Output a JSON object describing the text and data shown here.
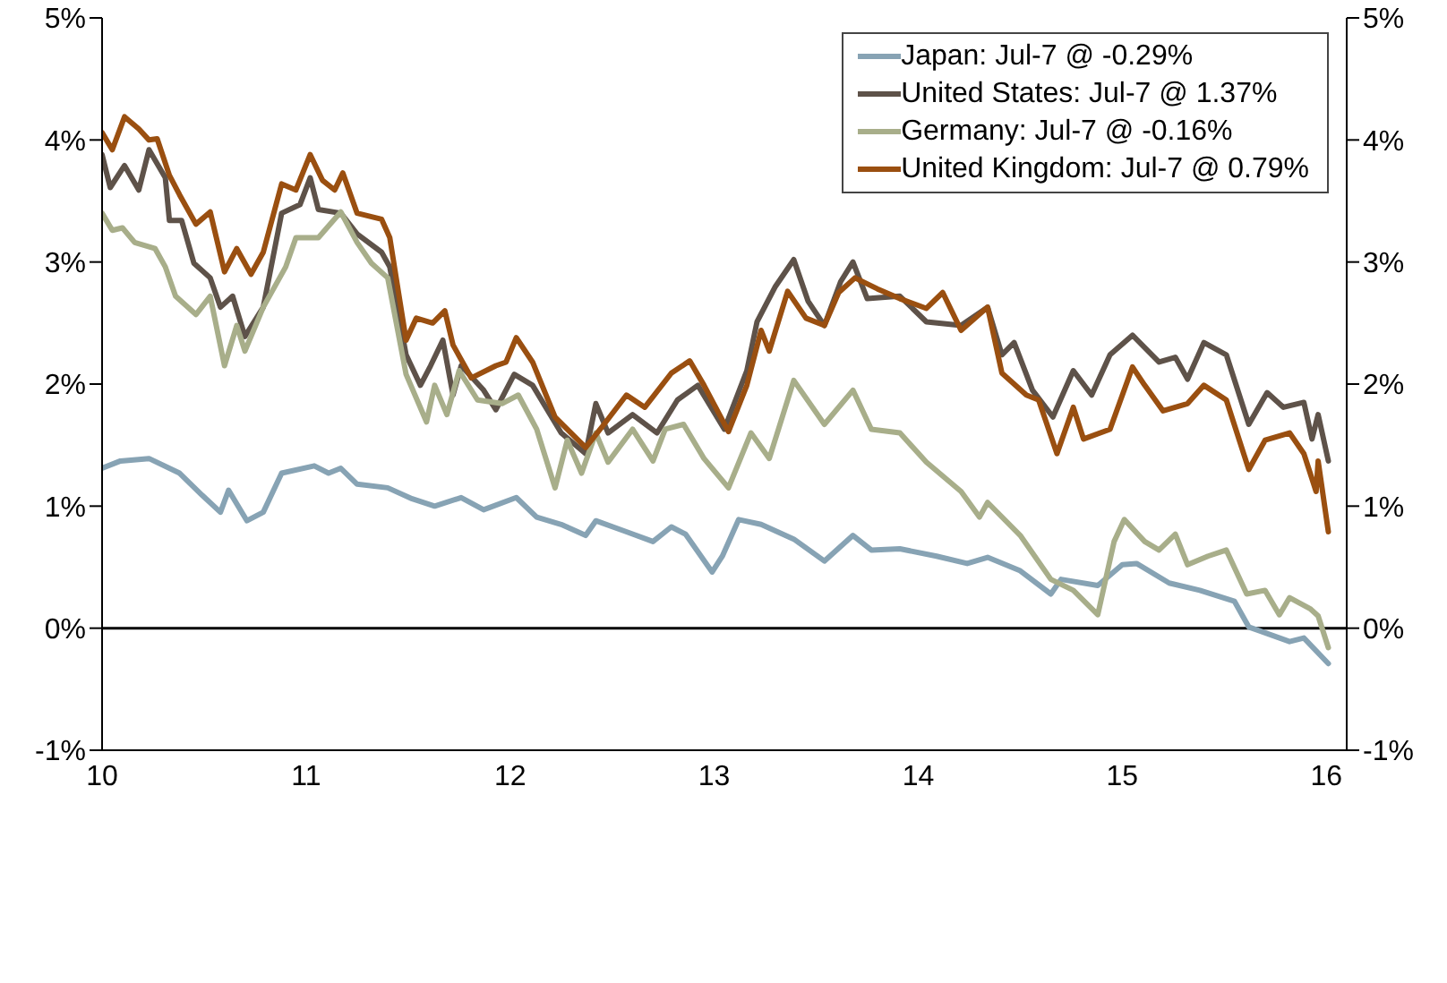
{
  "chart_data": {
    "type": "line",
    "xlim": [
      10,
      16.1
    ],
    "xticks": [
      10,
      11,
      12,
      13,
      14,
      15,
      16
    ],
    "ylim": [
      -1,
      5
    ],
    "yticks": [
      {
        "value": -1,
        "label": "-1%"
      },
      {
        "value": 0,
        "label": "0%"
      },
      {
        "value": 1,
        "label": "1%"
      },
      {
        "value": 2,
        "label": "2%"
      },
      {
        "value": 3,
        "label": "3%"
      },
      {
        "value": 4,
        "label": "4%"
      },
      {
        "value": 5,
        "label": "5%"
      }
    ],
    "y2lim": [
      -1,
      5
    ],
    "y2ticks": [
      {
        "value": -1,
        "label": "-1%"
      },
      {
        "value": 0,
        "label": "0%"
      },
      {
        "value": 1,
        "label": "1%"
      },
      {
        "value": 2,
        "label": "2%"
      },
      {
        "value": 3,
        "label": "3%"
      },
      {
        "value": 4,
        "label": "4%"
      },
      {
        "value": 5,
        "label": "5%"
      }
    ],
    "grid": false,
    "legend": "top right",
    "marker": "none",
    "line_style": "solid",
    "ref_lines": [
      {
        "axis": "y",
        "value": 0,
        "color": "#000000"
      }
    ],
    "series": [
      {
        "name": "Japan: Jul-7 @ -0.29%",
        "color": "#87a3b4",
        "x": [
          10.0,
          10.09,
          10.23,
          10.38,
          10.49,
          10.58,
          10.62,
          10.71,
          10.79,
          10.88,
          11.04,
          11.11,
          11.17,
          11.25,
          11.4,
          11.52,
          11.63,
          11.76,
          11.87,
          12.03,
          12.13,
          12.25,
          12.37,
          12.42,
          12.57,
          12.7,
          12.79,
          12.86,
          12.99,
          13.04,
          13.12,
          13.23,
          13.39,
          13.54,
          13.68,
          13.77,
          13.91,
          14.09,
          14.24,
          14.34,
          14.5,
          14.65,
          14.7,
          14.88,
          15.0,
          15.07,
          15.23,
          15.38,
          15.55,
          15.62,
          15.67,
          15.82,
          15.89,
          16.01
        ],
        "values": [
          1.31,
          1.37,
          1.39,
          1.27,
          1.09,
          0.95,
          1.13,
          0.88,
          0.95,
          1.27,
          1.33,
          1.27,
          1.31,
          1.18,
          1.15,
          1.06,
          1.0,
          1.07,
          0.97,
          1.07,
          0.91,
          0.85,
          0.76,
          0.88,
          0.79,
          0.71,
          0.83,
          0.77,
          0.46,
          0.59,
          0.89,
          0.85,
          0.73,
          0.55,
          0.76,
          0.64,
          0.65,
          0.59,
          0.53,
          0.58,
          0.47,
          0.28,
          0.4,
          0.35,
          0.52,
          0.53,
          0.37,
          0.31,
          0.22,
          0.01,
          -0.02,
          -0.11,
          -0.08,
          -0.29
        ]
      },
      {
        "name": "United States: Jul-7 @ 1.37%",
        "color": "#5e5249",
        "x": [
          10.0,
          10.04,
          10.11,
          10.18,
          10.23,
          10.31,
          10.33,
          10.39,
          10.45,
          10.53,
          10.58,
          10.64,
          10.7,
          10.79,
          10.88,
          10.97,
          11.02,
          11.06,
          11.17,
          11.25,
          11.37,
          11.41,
          11.49,
          11.56,
          11.61,
          11.67,
          11.72,
          11.76,
          11.87,
          11.93,
          12.02,
          12.11,
          12.25,
          12.37,
          12.42,
          12.48,
          12.6,
          12.72,
          12.82,
          12.92,
          13.05,
          13.16,
          13.21,
          13.3,
          13.39,
          13.46,
          13.54,
          13.62,
          13.68,
          13.75,
          13.91,
          14.04,
          14.21,
          14.34,
          14.41,
          14.47,
          14.56,
          14.66,
          14.76,
          14.85,
          14.94,
          15.05,
          15.18,
          15.26,
          15.32,
          15.4,
          15.51,
          15.62,
          15.71,
          15.79,
          15.89,
          15.93,
          15.96,
          16.01
        ],
        "values": [
          3.88,
          3.61,
          3.79,
          3.59,
          3.92,
          3.69,
          3.34,
          3.34,
          2.99,
          2.87,
          2.63,
          2.72,
          2.39,
          2.63,
          3.4,
          3.47,
          3.69,
          3.43,
          3.4,
          3.23,
          3.08,
          2.96,
          2.24,
          1.99,
          2.15,
          2.36,
          1.91,
          2.15,
          1.95,
          1.79,
          2.08,
          1.99,
          1.6,
          1.43,
          1.84,
          1.6,
          1.75,
          1.6,
          1.87,
          1.99,
          1.63,
          2.11,
          2.51,
          2.8,
          3.02,
          2.68,
          2.48,
          2.84,
          3.0,
          2.7,
          2.72,
          2.51,
          2.48,
          2.63,
          2.24,
          2.34,
          1.95,
          1.73,
          2.11,
          1.91,
          2.24,
          2.4,
          2.18,
          2.22,
          2.04,
          2.34,
          2.24,
          1.67,
          1.93,
          1.81,
          1.85,
          1.55,
          1.75,
          1.37
        ]
      },
      {
        "name": "Germany: Jul-7 @ -0.16%",
        "color": "#a8ae8a",
        "x": [
          10.0,
          10.05,
          10.1,
          10.16,
          10.26,
          10.31,
          10.36,
          10.46,
          10.53,
          10.6,
          10.66,
          10.7,
          10.79,
          10.9,
          10.95,
          11.06,
          11.17,
          11.25,
          11.32,
          11.4,
          11.49,
          11.59,
          11.63,
          11.69,
          11.75,
          11.84,
          11.96,
          12.04,
          12.13,
          12.22,
          12.28,
          12.35,
          12.42,
          12.48,
          12.6,
          12.7,
          12.76,
          12.85,
          12.95,
          13.07,
          13.18,
          13.27,
          13.39,
          13.54,
          13.68,
          13.77,
          13.91,
          14.04,
          14.21,
          14.3,
          14.34,
          14.5,
          14.65,
          14.76,
          14.88,
          14.96,
          15.01,
          15.11,
          15.18,
          15.26,
          15.32,
          15.42,
          15.51,
          15.61,
          15.7,
          15.77,
          15.82,
          15.92,
          15.96,
          16.01
        ],
        "values": [
          3.4,
          3.26,
          3.28,
          3.16,
          3.11,
          2.96,
          2.72,
          2.57,
          2.72,
          2.15,
          2.48,
          2.27,
          2.63,
          2.96,
          3.2,
          3.2,
          3.41,
          3.16,
          2.99,
          2.87,
          2.08,
          1.69,
          1.99,
          1.75,
          2.11,
          1.87,
          1.84,
          1.91,
          1.63,
          1.15,
          1.54,
          1.27,
          1.6,
          1.36,
          1.63,
          1.37,
          1.63,
          1.67,
          1.39,
          1.15,
          1.6,
          1.39,
          2.03,
          1.67,
          1.95,
          1.63,
          1.6,
          1.36,
          1.12,
          0.91,
          1.03,
          0.76,
          0.4,
          0.31,
          0.11,
          0.71,
          0.89,
          0.71,
          0.64,
          0.77,
          0.52,
          0.59,
          0.64,
          0.28,
          0.31,
          0.11,
          0.25,
          0.16,
          0.1,
          -0.16
        ]
      },
      {
        "name": "United Kingdom: Jul-7 @ 0.79%",
        "color": "#9a4f10",
        "x": [
          10.0,
          10.05,
          10.11,
          10.18,
          10.23,
          10.27,
          10.33,
          10.38,
          10.46,
          10.53,
          10.6,
          10.66,
          10.73,
          10.79,
          10.88,
          10.95,
          11.02,
          11.08,
          11.14,
          11.18,
          11.25,
          11.37,
          11.41,
          11.49,
          11.54,
          11.62,
          11.68,
          11.72,
          11.81,
          11.93,
          11.98,
          12.03,
          12.11,
          12.22,
          12.37,
          12.46,
          12.57,
          12.66,
          12.79,
          12.88,
          12.95,
          13.07,
          13.16,
          13.23,
          13.27,
          13.36,
          13.45,
          13.54,
          13.61,
          13.69,
          13.8,
          13.91,
          14.04,
          14.12,
          14.21,
          14.34,
          14.41,
          14.53,
          14.59,
          14.68,
          14.76,
          14.81,
          14.94,
          15.05,
          15.11,
          15.2,
          15.32,
          15.4,
          15.51,
          15.62,
          15.7,
          15.82,
          15.89,
          15.95,
          15.96,
          16.01
        ],
        "values": [
          4.06,
          3.92,
          4.19,
          4.09,
          4.0,
          4.01,
          3.71,
          3.55,
          3.31,
          3.41,
          2.92,
          3.11,
          2.9,
          3.08,
          3.64,
          3.59,
          3.88,
          3.67,
          3.59,
          3.73,
          3.4,
          3.35,
          3.2,
          2.36,
          2.54,
          2.5,
          2.6,
          2.32,
          2.05,
          2.15,
          2.18,
          2.38,
          2.18,
          1.73,
          1.48,
          1.67,
          1.91,
          1.81,
          2.09,
          2.19,
          1.99,
          1.61,
          1.99,
          2.44,
          2.27,
          2.76,
          2.54,
          2.48,
          2.75,
          2.87,
          2.78,
          2.7,
          2.62,
          2.75,
          2.44,
          2.63,
          2.09,
          1.91,
          1.87,
          1.43,
          1.81,
          1.55,
          1.63,
          2.14,
          1.99,
          1.78,
          1.84,
          1.99,
          1.87,
          1.3,
          1.54,
          1.6,
          1.43,
          1.12,
          1.37,
          0.79
        ]
      }
    ]
  }
}
